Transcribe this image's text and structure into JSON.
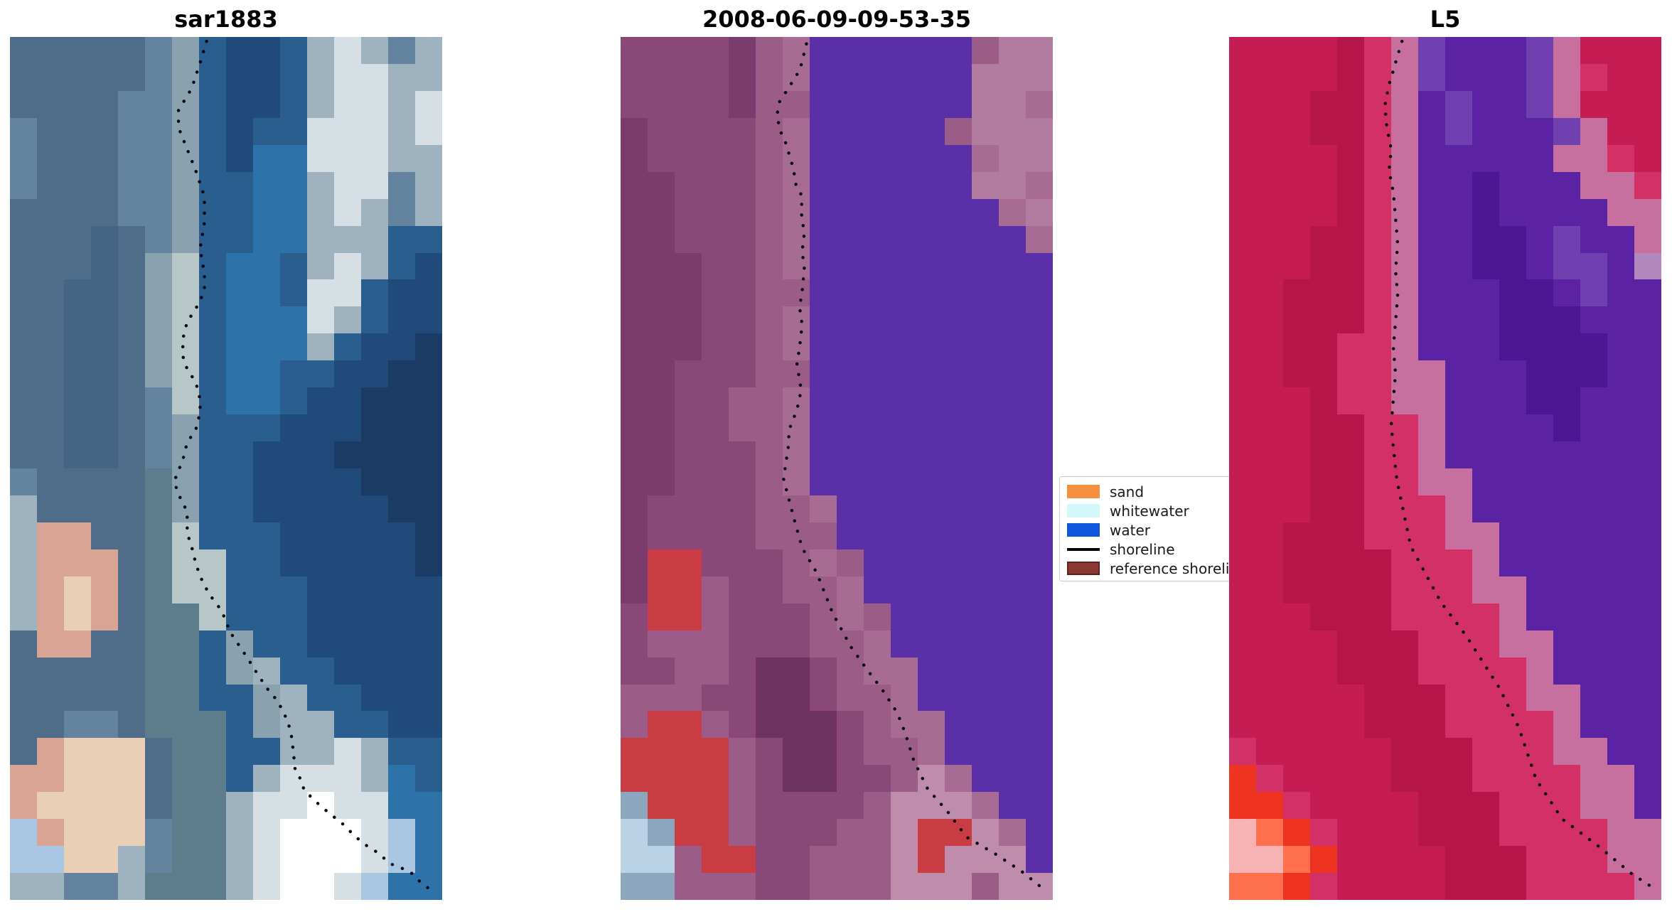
{
  "figure": {
    "background": "#ffffff",
    "shoreline_dot_color": "#0b0b12"
  },
  "chart_data": {
    "type": "heatmap",
    "description": "Three-panel coastal satellite image comparison with detected shoreline dots overlaid",
    "legend_position": "center-right between panel 2 and panel 3",
    "grid": "off",
    "panels": [
      {
        "title": "sar1883",
        "palette": {
          "0": "#4f6d89",
          "1": "#456585",
          "2": "#64839e",
          "3": "#8aa2b0",
          "4": "#b7c6c6",
          "5": "#2a5e8e",
          "6": "#1f4a7a",
          "7": "#2d72a8",
          "8": "#1b3a64",
          "9": "#9fb2bf",
          "a": "#d6dfe3",
          "b": "#ffffff",
          "c": "#d9a493",
          "d": "#e9cfb6",
          "e": "#a9c6e2",
          "f": "#5d7d8d"
        },
        "rows": [
          "000002356659a929",
          "000002356659aa99",
          "000022356659aa9a",
          "20002235655aaa9a",
          "20002235677aaa99",
          "200022355779aa29",
          "000022355779a929",
          "0001023557799955",
          "000103457759a956",
          "00110345775aa566",
          "00110345777a9566",
          "0011034577795668",
          "0011034577556688",
          "0011024577566888",
          "0011023555666888",
          "0011023556668888",
          "20000f3556666888",
          "90000f3556666688",
          "9cc00f4555666668",
          "9ccc0f4455666668",
          "9cdc0f4455566666",
          "9cdc0ff455566666",
          "0cc00ff535566666",
          "00000ff539556666",
          "00000ff553955666",
          "00220fff53995566",
          "0cddd0ff5599a955",
          "ccddd0ff59aaa975",
          "cdddd0ff9aabaa77",
          "ecddd2ff9abbbae7",
          "eedd92ff9abbbae7",
          "99229fff9abbae77"
        ],
        "shoreline": [
          [
            0.455,
            0.005
          ],
          [
            0.44,
            0.03
          ],
          [
            0.42,
            0.06
          ],
          [
            0.39,
            0.085
          ],
          [
            0.39,
            0.105
          ],
          [
            0.41,
            0.13
          ],
          [
            0.43,
            0.155
          ],
          [
            0.45,
            0.185
          ],
          [
            0.45,
            0.215
          ],
          [
            0.44,
            0.245
          ],
          [
            0.45,
            0.275
          ],
          [
            0.45,
            0.295
          ],
          [
            0.43,
            0.315
          ],
          [
            0.41,
            0.33
          ],
          [
            0.4,
            0.35
          ],
          [
            0.4,
            0.37
          ],
          [
            0.41,
            0.385
          ],
          [
            0.43,
            0.4
          ],
          [
            0.44,
            0.42
          ],
          [
            0.44,
            0.435
          ],
          [
            0.43,
            0.455
          ],
          [
            0.41,
            0.47
          ],
          [
            0.4,
            0.49
          ],
          [
            0.38,
            0.515
          ],
          [
            0.39,
            0.53
          ],
          [
            0.41,
            0.55
          ],
          [
            0.41,
            0.575
          ],
          [
            0.42,
            0.59
          ],
          [
            0.43,
            0.61
          ],
          [
            0.44,
            0.625
          ],
          [
            0.46,
            0.645
          ],
          [
            0.49,
            0.665
          ],
          [
            0.51,
            0.69
          ],
          [
            0.53,
            0.705
          ],
          [
            0.55,
            0.72
          ],
          [
            0.575,
            0.74
          ],
          [
            0.595,
            0.755
          ],
          [
            0.62,
            0.77
          ],
          [
            0.64,
            0.79
          ],
          [
            0.65,
            0.805
          ],
          [
            0.655,
            0.825
          ],
          [
            0.66,
            0.85
          ],
          [
            0.675,
            0.862
          ],
          [
            0.68,
            0.872
          ],
          [
            0.705,
            0.885
          ],
          [
            0.735,
            0.898
          ],
          [
            0.77,
            0.912
          ],
          [
            0.8,
            0.927
          ],
          [
            0.825,
            0.937
          ],
          [
            0.85,
            0.945
          ],
          [
            0.88,
            0.958
          ],
          [
            0.925,
            0.967
          ],
          [
            0.955,
            0.982
          ],
          [
            0.985,
            0.992
          ]
        ]
      },
      {
        "title": "2008-06-09-09-53-35",
        "palette": {
          "0": "#7b3b6c",
          "1": "#8a4879",
          "2": "#9c5c88",
          "3": "#b27ba0",
          "4": "#5a2fa8",
          "5": "#c93c44",
          "6": "#c08cab",
          "7": "#b9d2e6",
          "8": "#8ba6bd",
          "9": "#6d3260",
          "a": "#a86c94"
        },
        "rows": [
          "111102a444444233",
          "111102a444444333",
          "111102244444433a",
          "011112a444442333",
          "011112a444444a33",
          "001112a44444433a",
          "001112a4444444a3",
          "001112a44444444a",
          "000112a444444444",
          "0001122444444444",
          "000112a444444444",
          "000112a444444444",
          "0011122444444444",
          "001122a444444444",
          "001122a444444444",
          "001112a444444444",
          "001112a444444444",
          "0111122a44444444",
          "0111122244444444",
          "0551112a24444444",
          "05521122a4444444",
          "15521112a2444444",
          "122211122a444444",
          "112219912aa44444",
          "2221199122a44444",
          "2552199912aa4444",
          "55552199122a4444",
          "555521991126a444",
          "8555211112666a44",
          "78552111226556a4",
          "7725511222656664",
          "8822211222666266"
        ],
        "shoreline": [
          [
            0.43,
            0.008
          ],
          [
            0.415,
            0.038
          ],
          [
            0.39,
            0.058
          ],
          [
            0.368,
            0.075
          ],
          [
            0.362,
            0.09
          ],
          [
            0.368,
            0.107
          ],
          [
            0.382,
            0.123
          ],
          [
            0.39,
            0.136
          ],
          [
            0.4,
            0.153
          ],
          [
            0.405,
            0.17
          ],
          [
            0.42,
            0.185
          ],
          [
            0.418,
            0.203
          ],
          [
            0.425,
            0.228
          ],
          [
            0.42,
            0.248
          ],
          [
            0.425,
            0.268
          ],
          [
            0.42,
            0.295
          ],
          [
            0.414,
            0.313
          ],
          [
            0.42,
            0.333
          ],
          [
            0.414,
            0.36
          ],
          [
            0.408,
            0.379
          ],
          [
            0.418,
            0.409
          ],
          [
            0.408,
            0.432
          ],
          [
            0.39,
            0.455
          ],
          [
            0.388,
            0.475
          ],
          [
            0.382,
            0.495
          ],
          [
            0.377,
            0.512
          ],
          [
            0.4,
            0.556
          ],
          [
            0.42,
            0.592
          ],
          [
            0.454,
            0.621
          ],
          [
            0.49,
            0.667
          ],
          [
            0.533,
            0.707
          ],
          [
            0.57,
            0.733
          ],
          [
            0.605,
            0.756
          ],
          [
            0.64,
            0.783
          ],
          [
            0.658,
            0.806
          ],
          [
            0.678,
            0.838
          ],
          [
            0.71,
            0.871
          ],
          [
            0.757,
            0.898
          ],
          [
            0.8,
            0.927
          ],
          [
            0.868,
            0.947
          ],
          [
            0.928,
            0.967
          ],
          [
            0.98,
            0.988
          ]
        ]
      },
      {
        "title": "L5",
        "palette": {
          "0": "#c41c53",
          "1": "#b61549",
          "2": "#d23066",
          "3": "#c7709f",
          "4": "#5b22a3",
          "5": "#7040b0",
          "6": "#4b1691",
          "7": "#b288bd",
          "8": "#ee3420",
          "9": "#ff6f4e",
          "a": "#f7b3b3"
        },
        "rows": [
          "0000123544453000",
          "0000123544453200",
          "0001123454453000",
          "0001123454445300",
          "0000123444443320",
          "0000123446444332",
          "0000123446444433",
          "0001123446645443",
          "0001123446645547",
          "0011123444664544",
          "0011123444666444",
          "0011223444666644",
          "0011223344466644",
          "0001223344466444",
          "0001122344446444",
          "0001122344444444",
          "0001122334444444",
          "0001122234444444",
          "0011122233444444",
          "0011112223444444",
          "0011112223344444",
          "0001112222344444",
          "0000111222334444",
          "0000111222234444",
          "0000011122233444",
          "0000011122223444",
          "2000001112223344",
          "8200001112222334",
          "8820000111222334",
          "a982000111222233",
          "aa98000011122233",
          "9982000011122223"
        ],
        "shoreline": [
          [
            0.4,
            0.005
          ],
          [
            0.385,
            0.03
          ],
          [
            0.37,
            0.055
          ],
          [
            0.36,
            0.08
          ],
          [
            0.365,
            0.105
          ],
          [
            0.375,
            0.13
          ],
          [
            0.37,
            0.155
          ],
          [
            0.38,
            0.18
          ],
          [
            0.385,
            0.21
          ],
          [
            0.39,
            0.24
          ],
          [
            0.385,
            0.27
          ],
          [
            0.39,
            0.3
          ],
          [
            0.385,
            0.33
          ],
          [
            0.38,
            0.36
          ],
          [
            0.385,
            0.39
          ],
          [
            0.38,
            0.42
          ],
          [
            0.375,
            0.45
          ],
          [
            0.38,
            0.475
          ],
          [
            0.388,
            0.513
          ],
          [
            0.42,
            0.59
          ],
          [
            0.49,
            0.655
          ],
          [
            0.55,
            0.695
          ],
          [
            0.625,
            0.754
          ],
          [
            0.67,
            0.8
          ],
          [
            0.71,
            0.86
          ],
          [
            0.77,
            0.906
          ],
          [
            0.85,
            0.936
          ],
          [
            0.93,
            0.969
          ],
          [
            0.987,
            0.988
          ]
        ]
      }
    ],
    "legend": {
      "items": [
        {
          "label": "sand",
          "swatch": "patch",
          "color": "#f5913e"
        },
        {
          "label": "whitewater",
          "swatch": "patch",
          "color": "#d2f6f9"
        },
        {
          "label": "water",
          "swatch": "patch",
          "color": "#0e56dc"
        },
        {
          "label": "shoreline",
          "swatch": "line",
          "color": "#000000"
        },
        {
          "label": "reference shoreline",
          "swatch": "patch",
          "color": "#8b3732",
          "edge": "#5f201f"
        }
      ]
    }
  }
}
